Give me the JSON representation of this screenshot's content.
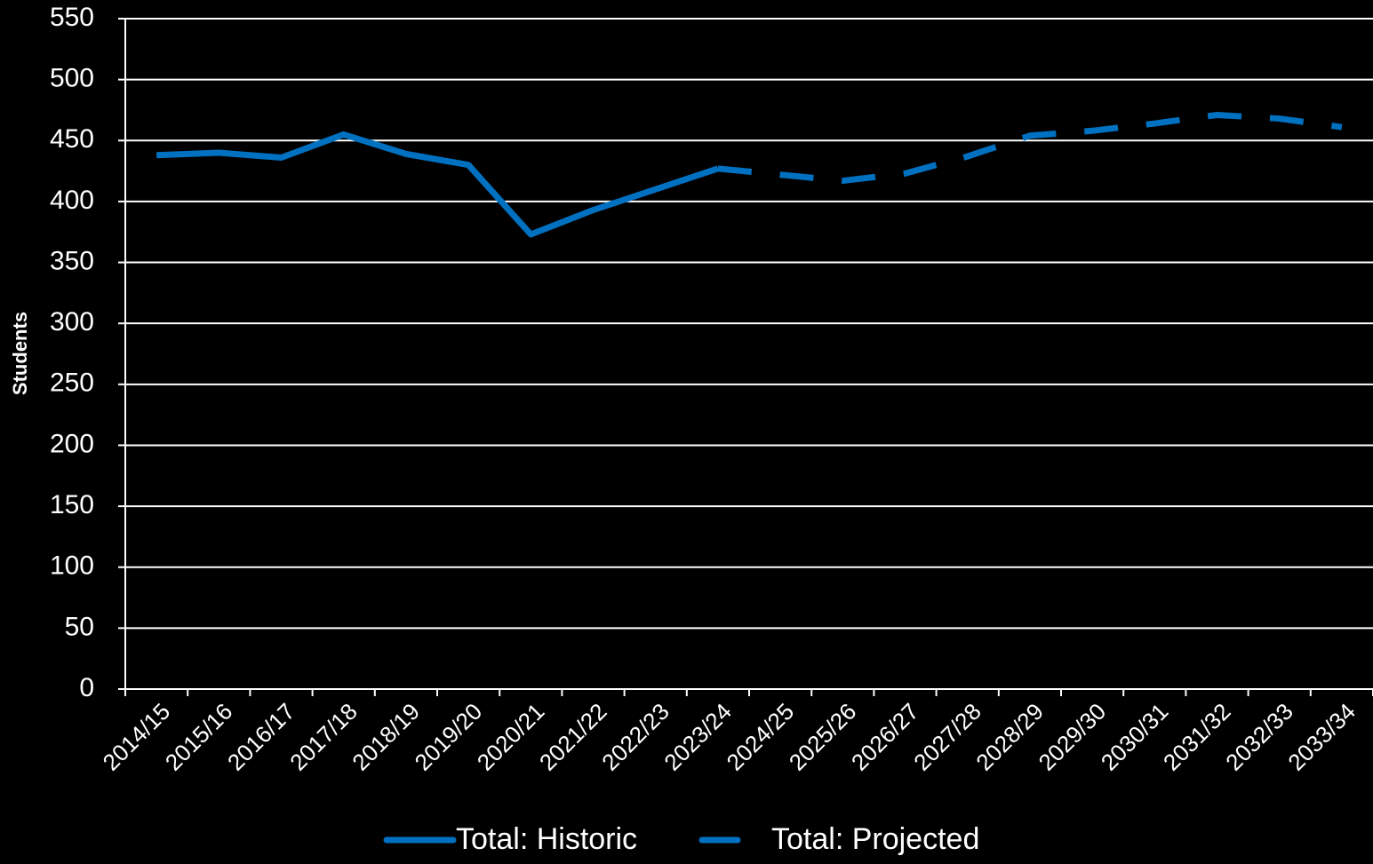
{
  "chart_data": {
    "type": "line",
    "y_label": "Students",
    "categories": [
      "2014/15",
      "2015/16",
      "2016/17",
      "2017/18",
      "2018/19",
      "2019/20",
      "2020/21",
      "2021/22",
      "2022/23",
      "2023/24",
      "2024/25",
      "2025/26",
      "2026/27",
      "2027/28",
      "2028/29",
      "2029/30",
      "2030/31",
      "2031/32",
      "2032/33",
      "2033/34"
    ],
    "series": [
      {
        "name": "Total: Historic",
        "color": "#0070c0",
        "dashed": false,
        "values": [
          438,
          440,
          436,
          455,
          439,
          430,
          373,
          393,
          410,
          427,
          null,
          null,
          null,
          null,
          null,
          null,
          null,
          null,
          null,
          null
        ]
      },
      {
        "name": "Total: Projected",
        "color": "#0070c0",
        "dashed": true,
        "values": [
          null,
          null,
          null,
          null,
          null,
          null,
          null,
          null,
          null,
          427,
          422,
          417,
          423,
          437,
          454,
          458,
          464,
          471,
          468,
          461
        ]
      }
    ],
    "ylim": [
      0,
      550
    ],
    "yticks": [
      0,
      50,
      100,
      150,
      200,
      250,
      300,
      350,
      400,
      450,
      500,
      550
    ],
    "grid": true
  }
}
